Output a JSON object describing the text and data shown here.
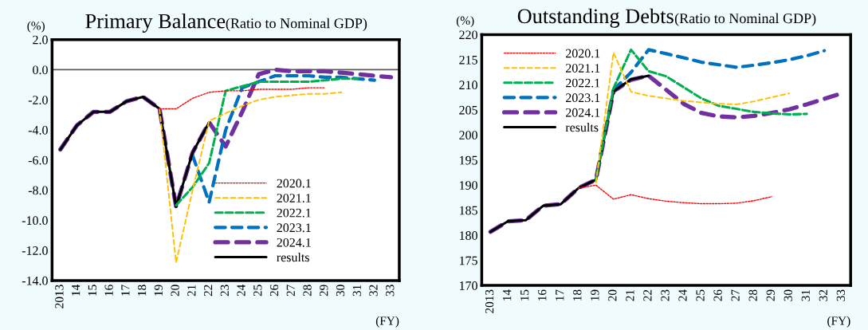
{
  "chart_data": [
    {
      "type": "line",
      "title": "Primary Balance",
      "subtitle": "(Ratio to Nominal GDP)",
      "ylabel": "(%)",
      "xlabel": "(FY)",
      "categories": [
        "2013",
        "14",
        "15",
        "16",
        "17",
        "18",
        "19",
        "20",
        "21",
        "22",
        "23",
        "24",
        "25",
        "26",
        "27",
        "28",
        "29",
        "30",
        "31",
        "32",
        "33"
      ],
      "ylim": [
        -14,
        2
      ],
      "yticks": [
        {
          "value": -14,
          "label": "-14.0"
        },
        {
          "value": -12,
          "label": "-12.0"
        },
        {
          "value": -10,
          "label": "-10.0"
        },
        {
          "value": -8,
          "label": "-8.0"
        },
        {
          "value": -6,
          "label": "-6.0"
        },
        {
          "value": -4,
          "label": "-4.0"
        },
        {
          "value": -2,
          "label": "-2.0"
        },
        {
          "value": 0,
          "label": "0.0"
        },
        {
          "value": 2,
          "label": "2.0"
        }
      ],
      "grid": false,
      "legend": "bottom right",
      "ref_lines": [
        {
          "axis": "y",
          "value": 0,
          "color": "#595959",
          "line_style": "solid"
        }
      ],
      "series": [
        {
          "name": "2020.1",
          "color": "#ff0000",
          "line_style": "dotted",
          "values": [
            null,
            null,
            null,
            null,
            null,
            null,
            -2.6,
            -2.6,
            -1.9,
            -1.5,
            -1.4,
            -1.4,
            -1.3,
            -1.3,
            -1.3,
            -1.2,
            -1.2,
            null,
            null,
            null,
            null
          ]
        },
        {
          "name": "2021.1",
          "color": "#ffc000",
          "line_style": "dashed",
          "values": [
            null,
            null,
            null,
            null,
            null,
            null,
            -2.6,
            -12.8,
            -8.0,
            -3.4,
            -2.9,
            -2.4,
            -2.0,
            -1.8,
            -1.7,
            -1.6,
            -1.6,
            -1.5,
            null,
            null,
            null
          ]
        },
        {
          "name": "2022.1",
          "color": "#00b050",
          "line_style": "dashed",
          "values": [
            null,
            null,
            null,
            null,
            null,
            null,
            null,
            -9.0,
            -7.8,
            -6.2,
            -1.4,
            -1.1,
            -0.8,
            -0.8,
            -0.8,
            -0.8,
            -0.7,
            -0.6,
            -0.6,
            null,
            null
          ]
        },
        {
          "name": "2023.1",
          "color": "#0070c0",
          "line_style": "dashed",
          "values": [
            null,
            null,
            null,
            null,
            null,
            null,
            null,
            null,
            -5.7,
            -8.8,
            -4.0,
            -1.2,
            -0.8,
            -0.4,
            -0.4,
            -0.4,
            -0.5,
            -0.5,
            -0.6,
            -0.7,
            null
          ]
        },
        {
          "name": "2024.1",
          "color": "#7030a0",
          "line_style": "dashed",
          "values": [
            -5.3,
            -3.7,
            -2.8,
            -2.8,
            -2.1,
            -1.8,
            -2.6,
            -9.1,
            -5.5,
            -3.5,
            -5.1,
            -2.8,
            -0.3,
            0.0,
            -0.1,
            -0.1,
            -0.1,
            -0.2,
            -0.3,
            -0.4,
            -0.5
          ]
        },
        {
          "name": "results",
          "color": "#000000",
          "line_style": "solid",
          "values": [
            -5.3,
            -3.7,
            -2.8,
            -2.8,
            -2.1,
            -1.8,
            -2.6,
            -9.1,
            -5.5,
            -3.5,
            null,
            null,
            null,
            null,
            null,
            null,
            null,
            null,
            null,
            null,
            null
          ]
        }
      ]
    },
    {
      "type": "line",
      "title": "Outstanding Debts",
      "subtitle": "(Ratio to Nominal GDP)",
      "ylabel": "(%)",
      "xlabel": "(FY)",
      "categories": [
        "2013",
        "14",
        "15",
        "16",
        "17",
        "18",
        "19",
        "20",
        "21",
        "22",
        "23",
        "24",
        "25",
        "26",
        "27",
        "28",
        "29",
        "30",
        "31",
        "32",
        "33"
      ],
      "ylim": [
        170,
        220
      ],
      "yticks": [
        170,
        175,
        180,
        185,
        190,
        195,
        200,
        205,
        210,
        215,
        220
      ],
      "grid": false,
      "legend": "top left",
      "series": [
        {
          "name": "2020.1",
          "color": "#ff0000",
          "line_style": "dotted",
          "values": [
            null,
            null,
            null,
            null,
            null,
            189.4,
            190.0,
            187.2,
            188.1,
            187.3,
            186.8,
            186.5,
            186.3,
            186.3,
            186.4,
            186.9,
            187.7,
            null,
            null,
            null,
            null
          ]
        },
        {
          "name": "2021.1",
          "color": "#ffc000",
          "line_style": "dashed",
          "values": [
            null,
            null,
            null,
            null,
            null,
            null,
            190.5,
            216.4,
            208.6,
            207.8,
            207.3,
            206.8,
            206.5,
            206.2,
            206.1,
            206.7,
            207.5,
            208.3,
            null,
            null,
            null
          ]
        },
        {
          "name": "2022.1",
          "color": "#00b050",
          "line_style": "dashed",
          "values": [
            null,
            null,
            null,
            null,
            null,
            null,
            191.1,
            209.3,
            217.0,
            212.7,
            211.7,
            209.5,
            207.3,
            205.8,
            205.2,
            204.6,
            204.3,
            204.1,
            204.2,
            null,
            null
          ]
        },
        {
          "name": "2023.1",
          "color": "#0070c0",
          "line_style": "dashed",
          "values": [
            null,
            null,
            null,
            null,
            null,
            null,
            null,
            209.0,
            212.5,
            217.0,
            216.2,
            215.4,
            214.5,
            214.0,
            213.5,
            213.9,
            214.4,
            215.0,
            215.8,
            216.8,
            null
          ]
        },
        {
          "name": "2024.1",
          "color": "#7030a0",
          "line_style": "dashed",
          "values": [
            180.7,
            182.8,
            183.0,
            185.9,
            186.2,
            189.4,
            191.1,
            208.7,
            211.0,
            211.8,
            209.0,
            206.2,
            204.4,
            203.7,
            203.5,
            203.8,
            204.4,
            205.1,
            206.1,
            207.2,
            208.3
          ]
        },
        {
          "name": "results",
          "color": "#000000",
          "line_style": "solid",
          "values": [
            180.7,
            182.8,
            183.0,
            185.9,
            186.2,
            189.4,
            191.1,
            208.7,
            211.1,
            211.8,
            null,
            null,
            null,
            null,
            null,
            null,
            null,
            null,
            null,
            null,
            null
          ]
        }
      ]
    }
  ]
}
